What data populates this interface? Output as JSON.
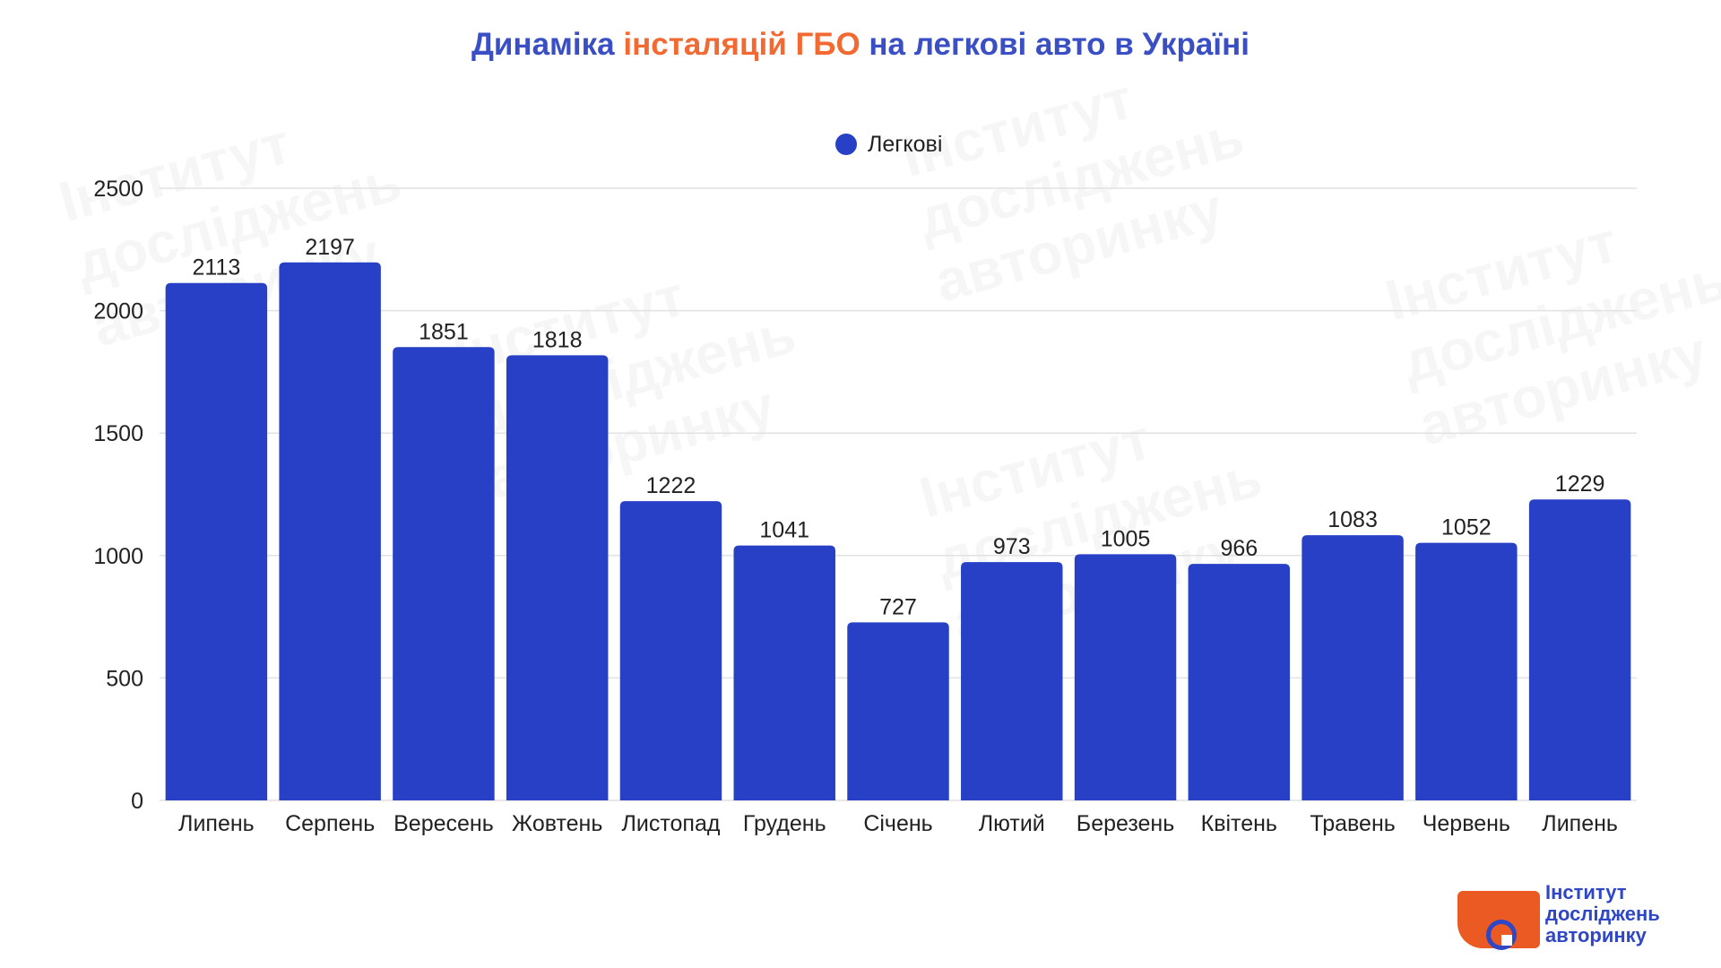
{
  "title": {
    "part1": "Динаміка",
    "accent": "інсталяцій ГБО",
    "part2": "на легкові авто в Україні"
  },
  "legend": {
    "label": "Легкові"
  },
  "colors": {
    "bar": "#2740c5",
    "accent": "#f26a32",
    "title": "#3b4fc4",
    "logo": "#ec5a24"
  },
  "watermark": {
    "text": "Інститут\nдосліджень\nавторинку"
  },
  "logo": {
    "line1": "Інститут",
    "line2": "досліджень",
    "line3": "авторинку"
  },
  "chart_data": {
    "type": "bar",
    "categories": [
      "Липень",
      "Серпень",
      "Вересень",
      "Жовтень",
      "Листопад",
      "Грудень",
      "Січень",
      "Лютий",
      "Березень",
      "Квітень",
      "Травень",
      "Червень",
      "Липень"
    ],
    "series": [
      {
        "name": "Легкові",
        "values": [
          2113,
          2197,
          1851,
          1818,
          1222,
          1041,
          727,
          973,
          1005,
          966,
          1083,
          1052,
          1229
        ]
      }
    ],
    "yticks": [
      0,
      500,
      1000,
      1500,
      2000,
      2500
    ],
    "ylim": [
      0,
      2500
    ],
    "grid": true,
    "legend_position": "top-center"
  }
}
